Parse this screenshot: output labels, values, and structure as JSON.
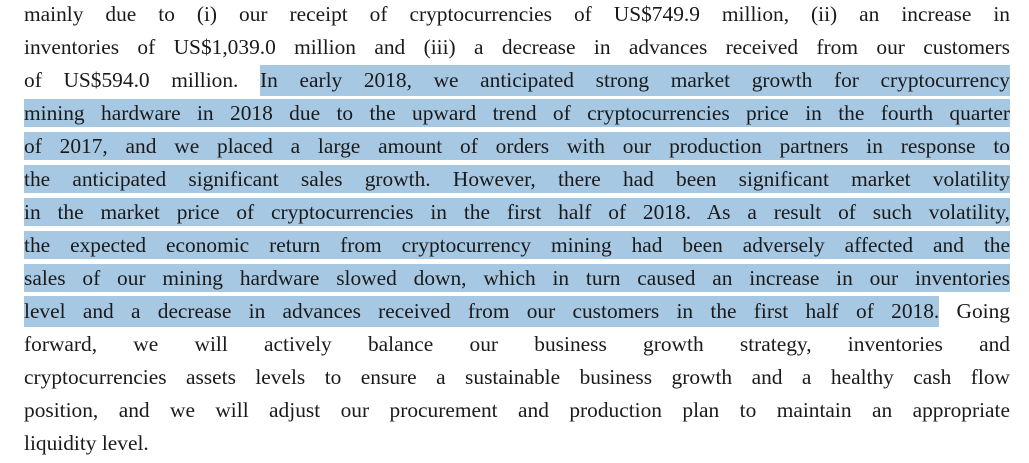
{
  "lines": [
    {
      "pre": "mainly due to (i) our receipt of cryptocurrencies of US$749.9 million, (ii) an increase in",
      "highlight": "",
      "post": ""
    },
    {
      "pre": "inventories of US$1,039.0 million and (iii) a decrease in advances received from our customers",
      "highlight": "",
      "post": ""
    },
    {
      "pre": "of US$594.0 million. ",
      "highlight": "In early 2018, we anticipated strong market growth for cryptocurrency",
      "post": ""
    },
    {
      "pre": "",
      "highlight": "mining hardware in 2018 due to the upward trend of cryptocurrencies price in the fourth quarter",
      "post": ""
    },
    {
      "pre": "",
      "highlight": "of 2017, and we placed a large amount of orders with our production partners in response to",
      "post": ""
    },
    {
      "pre": "",
      "highlight": "the anticipated significant sales growth. However, there had been significant market volatility",
      "post": ""
    },
    {
      "pre": "",
      "highlight": "in the market price of cryptocurrencies in the first half of 2018. As a result of such volatility,",
      "post": ""
    },
    {
      "pre": "",
      "highlight": "the expected economic return from cryptocurrency mining had been adversely affected and the",
      "post": ""
    },
    {
      "pre": "",
      "highlight": "sales of our mining hardware slowed down, which in turn caused an increase in our inventories",
      "post": ""
    },
    {
      "pre": "",
      "highlight": "level and a decrease in advances received from our customers in the first half of 2018.",
      "post": " Going"
    },
    {
      "pre": "forward, we will actively balance our business growth strategy, inventories and",
      "highlight": "",
      "post": ""
    },
    {
      "pre": "cryptocurrencies assets levels to ensure a sustainable business growth and a healthy cash flow",
      "highlight": "",
      "post": ""
    },
    {
      "pre": "position, and we will adjust our procurement and production plan to maintain an appropriate",
      "highlight": "",
      "post": ""
    },
    {
      "pre": "liquidity level.",
      "highlight": "",
      "post": ""
    }
  ],
  "colors": {
    "text": "#1a1a1a",
    "highlight": "#a7c8e3"
  }
}
